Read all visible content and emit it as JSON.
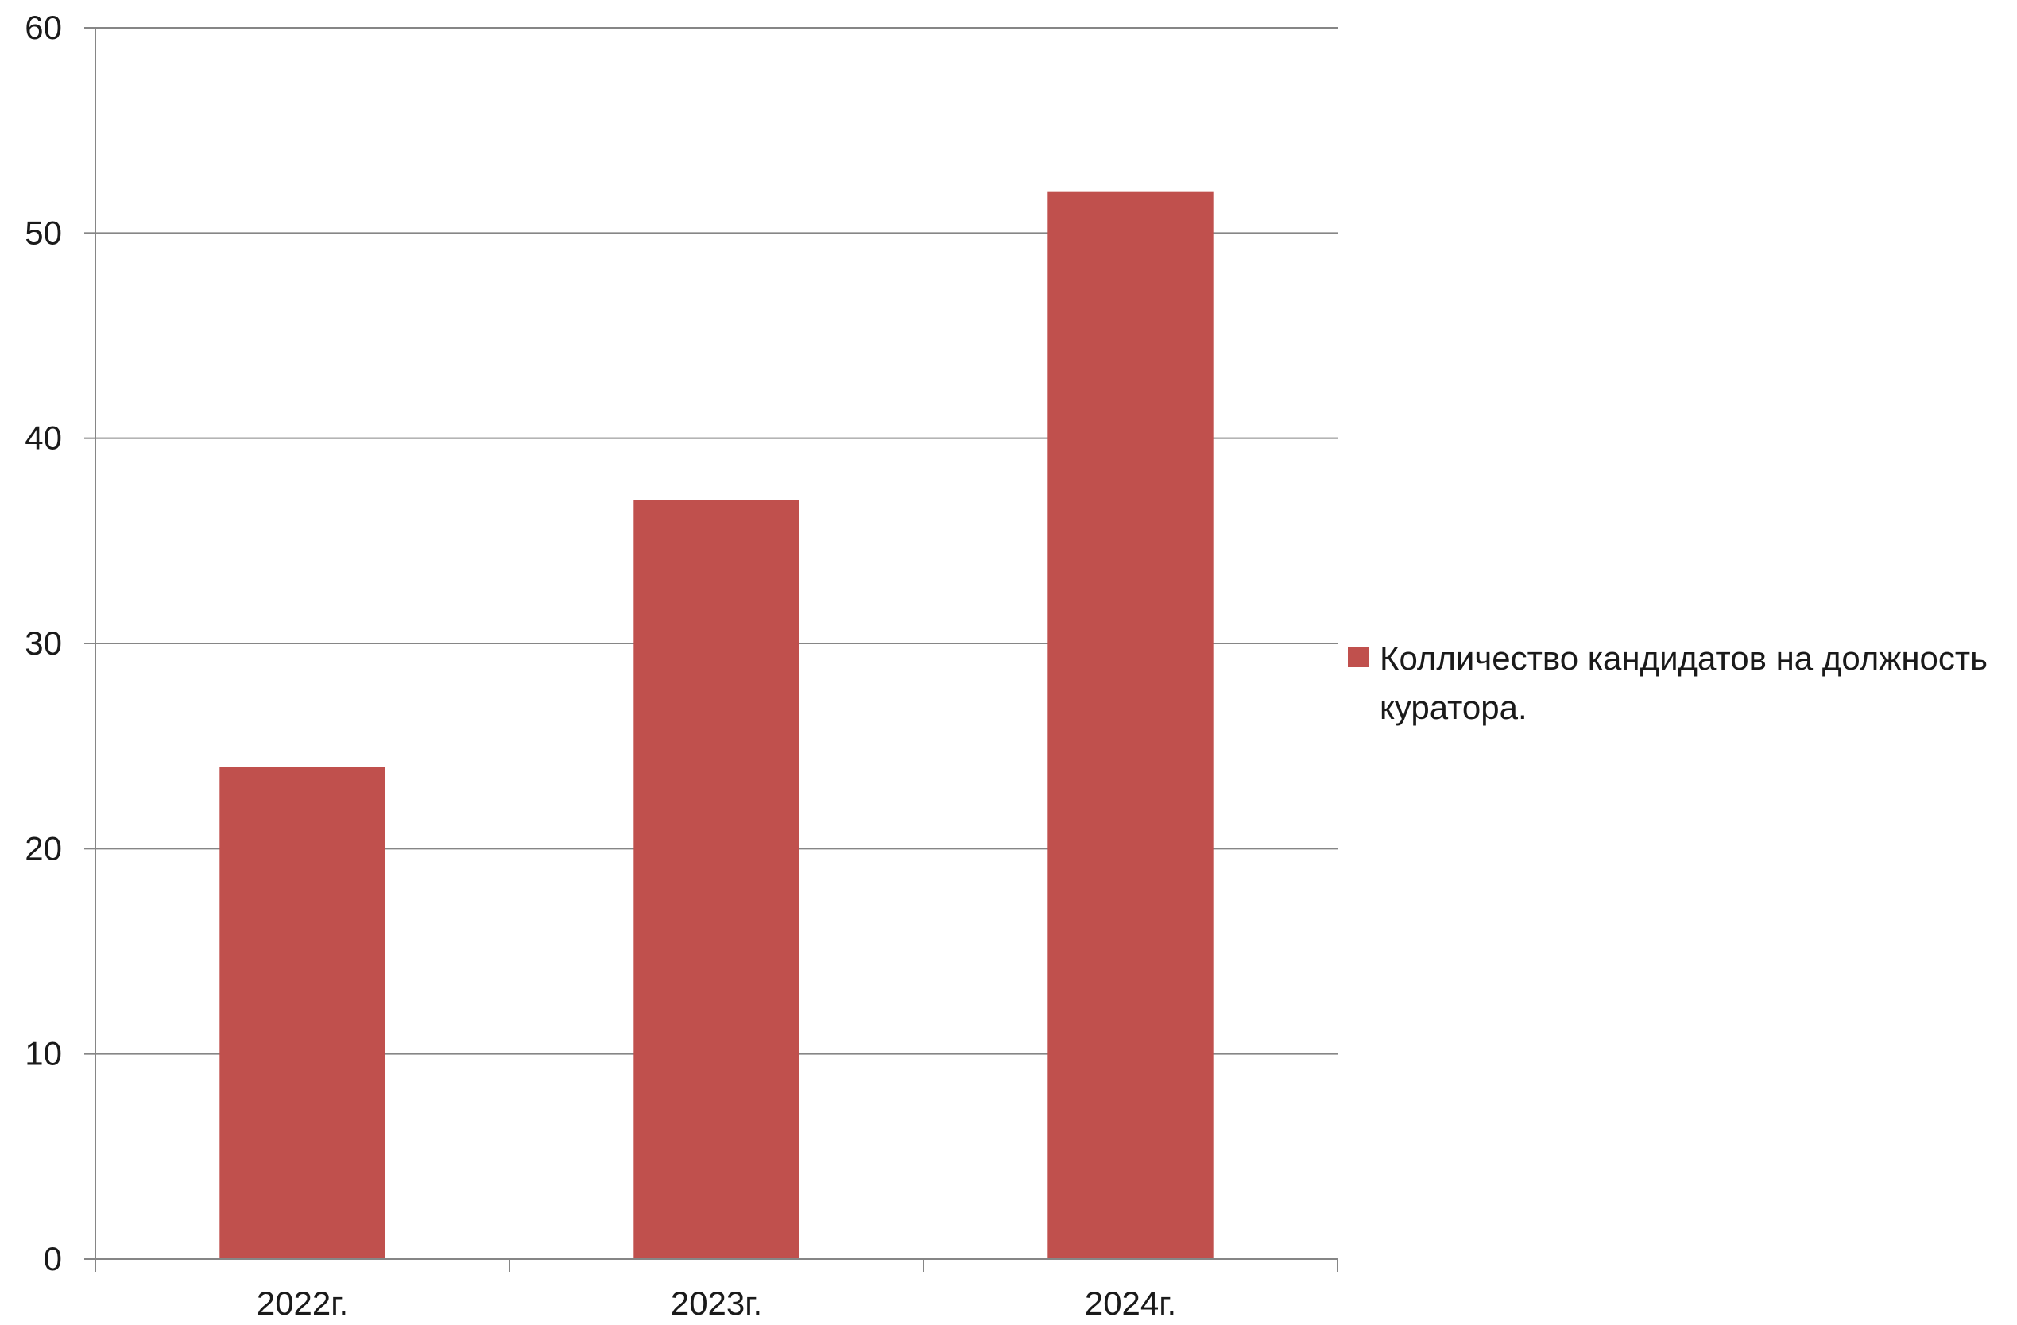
{
  "chart_data": {
    "type": "bar",
    "categories": [
      "2022г.",
      "2023г.",
      "2024г."
    ],
    "series": [
      {
        "name": "Колличество кандидатов на должность куратора.",
        "values": [
          24,
          37,
          52
        ],
        "color": "#c0504d"
      }
    ],
    "ylim": [
      0,
      60
    ],
    "yticks": [
      0,
      10,
      20,
      30,
      40,
      50,
      60
    ],
    "grid": true,
    "legend_position": "right"
  },
  "colors": {
    "gridline": "#868686",
    "axis": "#868686",
    "text": "#1a1a1a",
    "background": "#ffffff"
  }
}
